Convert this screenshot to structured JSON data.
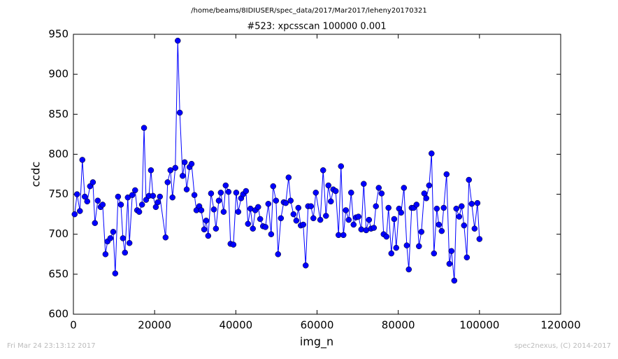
{
  "chart_data": {
    "type": "line",
    "suptitle": "/home/beams/8IDIUSER/spec_data/2017/Mar2017/leheny20170321",
    "title": "#523: xpcsscan 100000 0.001",
    "xlabel": "img_n",
    "ylabel": "ccdc",
    "footer_left": "Fri Mar 24 23:13:12 2017",
    "footer_right": "spec2nexus, (C) 2014-2017",
    "xlim": [
      0,
      120000
    ],
    "xticks": [
      0,
      20000,
      40000,
      60000,
      80000,
      100000,
      120000
    ],
    "ylim": [
      600,
      950
    ],
    "yticks": [
      600,
      650,
      700,
      750,
      800,
      850,
      900,
      950
    ],
    "grid": false,
    "x": [
      300,
      900,
      1600,
      2200,
      2800,
      3400,
      4100,
      4800,
      5300,
      6000,
      6700,
      7200,
      7900,
      8400,
      9100,
      9800,
      10300,
      11000,
      11700,
      12200,
      12700,
      13400,
      13800,
      14500,
      15200,
      15700,
      16200,
      16900,
      17400,
      17900,
      18600,
      19100,
      19600,
      20300,
      20800,
      21300,
      22700,
      23200,
      23900,
      24400,
      25100,
      25700,
      26200,
      26900,
      27400,
      27900,
      28600,
      29100,
      29800,
      30300,
      31000,
      31500,
      32200,
      32700,
      33200,
      33900,
      34600,
      35100,
      35800,
      36300,
      37000,
      37500,
      38200,
      38700,
      39400,
      40100,
      40600,
      41300,
      41800,
      42500,
      43000,
      43600,
      44200,
      44800,
      45500,
      46000,
      46700,
      47300,
      48000,
      48700,
      49200,
      49900,
      50400,
      51100,
      51800,
      52300,
      53000,
      53500,
      54200,
      54900,
      55400,
      56000,
      56600,
      57200,
      57800,
      58500,
      59100,
      59700,
      60800,
      61500,
      62200,
      62800,
      63400,
      64000,
      64600,
      65300,
      65900,
      66500,
      67100,
      67800,
      68400,
      69000,
      69600,
      70200,
      70900,
      71500,
      72100,
      72800,
      73300,
      74000,
      74500,
      75200,
      75900,
      76400,
      77100,
      77600,
      78300,
      79000,
      79500,
      80200,
      80700,
      81400,
      82100,
      82600,
      83300,
      83800,
      84500,
      85100,
      85700,
      86400,
      86900,
      87600,
      88200,
      88800,
      89500,
      90000,
      90700,
      91200,
      91900,
      92600,
      93100,
      93800,
      94300,
      95000,
      95600,
      96200,
      96900,
      97400,
      98100,
      98800,
      99500,
      100000
    ],
    "series": [
      {
        "name": "ccdc",
        "color": "#0000ff",
        "values": [
          725,
          750,
          729,
          793,
          747,
          741,
          760,
          765,
          714,
          742,
          734,
          737,
          675,
          691,
          695,
          703,
          651,
          747,
          737,
          695,
          677,
          746,
          689,
          749,
          755,
          730,
          728,
          737,
          833,
          743,
          748,
          780,
          748,
          734,
          740,
          747,
          696,
          765,
          780,
          746,
          783,
          942,
          852,
          773,
          790,
          756,
          784,
          788,
          749,
          730,
          735,
          730,
          706,
          717,
          698,
          751,
          731,
          707,
          742,
          752,
          728,
          761,
          753,
          688,
          687,
          752,
          728,
          745,
          750,
          754,
          713,
          732,
          707,
          730,
          734,
          719,
          710,
          709,
          738,
          700,
          760,
          742,
          675,
          720,
          740,
          739,
          771,
          742,
          725,
          717,
          733,
          711,
          712,
          661,
          735,
          735,
          720,
          752,
          718,
          780,
          723,
          761,
          741,
          756,
          754,
          699,
          785,
          699,
          730,
          718,
          752,
          712,
          721,
          722,
          706,
          763,
          705,
          718,
          707,
          708,
          735,
          758,
          751,
          700,
          697,
          733,
          676,
          719,
          683,
          732,
          727,
          758,
          686,
          656,
          733,
          733,
          737,
          685,
          703,
          751,
          745,
          761,
          801,
          676,
          732,
          712,
          704,
          733,
          775,
          663,
          679,
          642,
          732,
          722,
          735,
          711,
          671,
          768,
          738,
          707,
          739,
          694
        ]
      }
    ]
  }
}
